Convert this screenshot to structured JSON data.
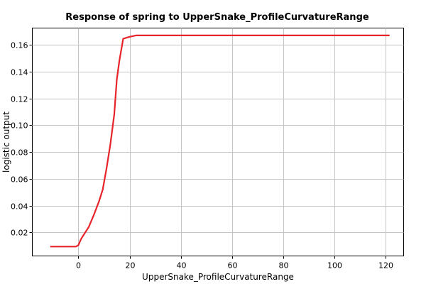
{
  "chart_data": {
    "type": "line",
    "title": "Response of spring to UpperSnake_ProfileCurvatureRange",
    "xlabel": "UpperSnake_ProfileCurvatureRange",
    "ylabel": "logistic output",
    "xlim": [
      -18,
      127
    ],
    "ylim": [
      0.0025,
      0.1725
    ],
    "xticks": [
      0,
      20,
      40,
      60,
      80,
      100,
      120
    ],
    "yticks": [
      0.02,
      0.04,
      0.06,
      0.08,
      0.1,
      0.12,
      0.14,
      0.16
    ],
    "ytick_labels": [
      "0.02",
      "0.04",
      "0.06",
      "0.08",
      "0.10",
      "0.12",
      "0.14",
      "0.16"
    ],
    "grid": true,
    "series": [
      {
        "color": "#e8242b",
        "x": [
          -11,
          -1,
          0,
          1,
          2,
          4,
          6,
          8,
          9.5,
          11,
          12.5,
          14,
          15,
          16,
          17.5,
          20,
          22.5,
          30,
          50,
          70,
          90,
          110,
          121.5
        ],
        "y": [
          0.0095,
          0.0095,
          0.0105,
          0.015,
          0.018,
          0.024,
          0.033,
          0.043,
          0.052,
          0.068,
          0.086,
          0.108,
          0.134,
          0.148,
          0.1645,
          0.166,
          0.167,
          0.167,
          0.167,
          0.167,
          0.167,
          0.167,
          0.167
        ]
      }
    ]
  }
}
